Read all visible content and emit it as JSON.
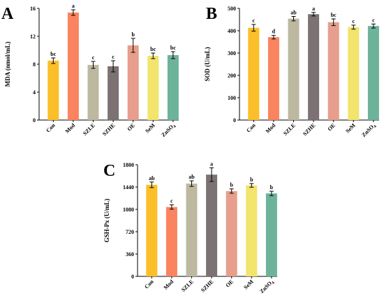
{
  "colors": [
    "#FBBF29",
    "#FA8460",
    "#BDB9A0",
    "#7D7273",
    "#E79E8C",
    "#F2E46C",
    "#6CB39A"
  ],
  "chart_data": [
    {
      "type": "bar",
      "panel": "A",
      "ylabel": "MDA (nmol/mL)",
      "ylim": [
        0,
        16
      ],
      "yticks": [
        "0",
        "4",
        "8",
        "12",
        "16"
      ],
      "categories": [
        "Con",
        "Mod",
        "SZLE",
        "SZHE",
        "OE",
        "SeM",
        "ZnSO4"
      ],
      "values": [
        8.5,
        15.4,
        7.9,
        7.7,
        10.7,
        9.2,
        9.3
      ],
      "errors": [
        0.4,
        0.4,
        0.5,
        0.8,
        1.0,
        0.4,
        0.5
      ],
      "significance": [
        "bc",
        "a",
        "c",
        "c",
        "b",
        "bc",
        "bc"
      ]
    },
    {
      "type": "bar",
      "panel": "B",
      "ylabel": "SOD (U/mL)",
      "ylim": [
        0,
        500
      ],
      "yticks": [
        "0",
        "100",
        "200",
        "300",
        "400",
        "500"
      ],
      "categories": [
        "Con",
        "Mod",
        "SZLE",
        "SZHE",
        "OE",
        "SeM",
        "ZnSO4"
      ],
      "values": [
        413,
        371,
        454,
        474,
        438,
        416,
        421
      ],
      "errors": [
        15,
        8,
        10,
        8,
        15,
        9,
        9
      ],
      "significance": [
        "c",
        "d",
        "ab",
        "a",
        "bc",
        "c",
        "c"
      ]
    },
    {
      "type": "bar",
      "panel": "C",
      "ylabel": "GSH-Px (U/mL)",
      "ylim": [
        0,
        1800
      ],
      "yticks": [
        "0",
        "360",
        "720",
        "1080",
        "1440",
        "1800"
      ],
      "categories": [
        "Con",
        "Mod",
        "SZLE",
        "SZHE",
        "OE",
        "SeM",
        "ZnSO4"
      ],
      "values": [
        1476,
        1118,
        1495,
        1640,
        1375,
        1467,
        1337
      ],
      "errors": [
        45,
        35,
        45,
        110,
        35,
        30,
        35
      ],
      "significance": [
        "ab",
        "c",
        "ab",
        "a",
        "b",
        "b",
        "b"
      ]
    }
  ]
}
